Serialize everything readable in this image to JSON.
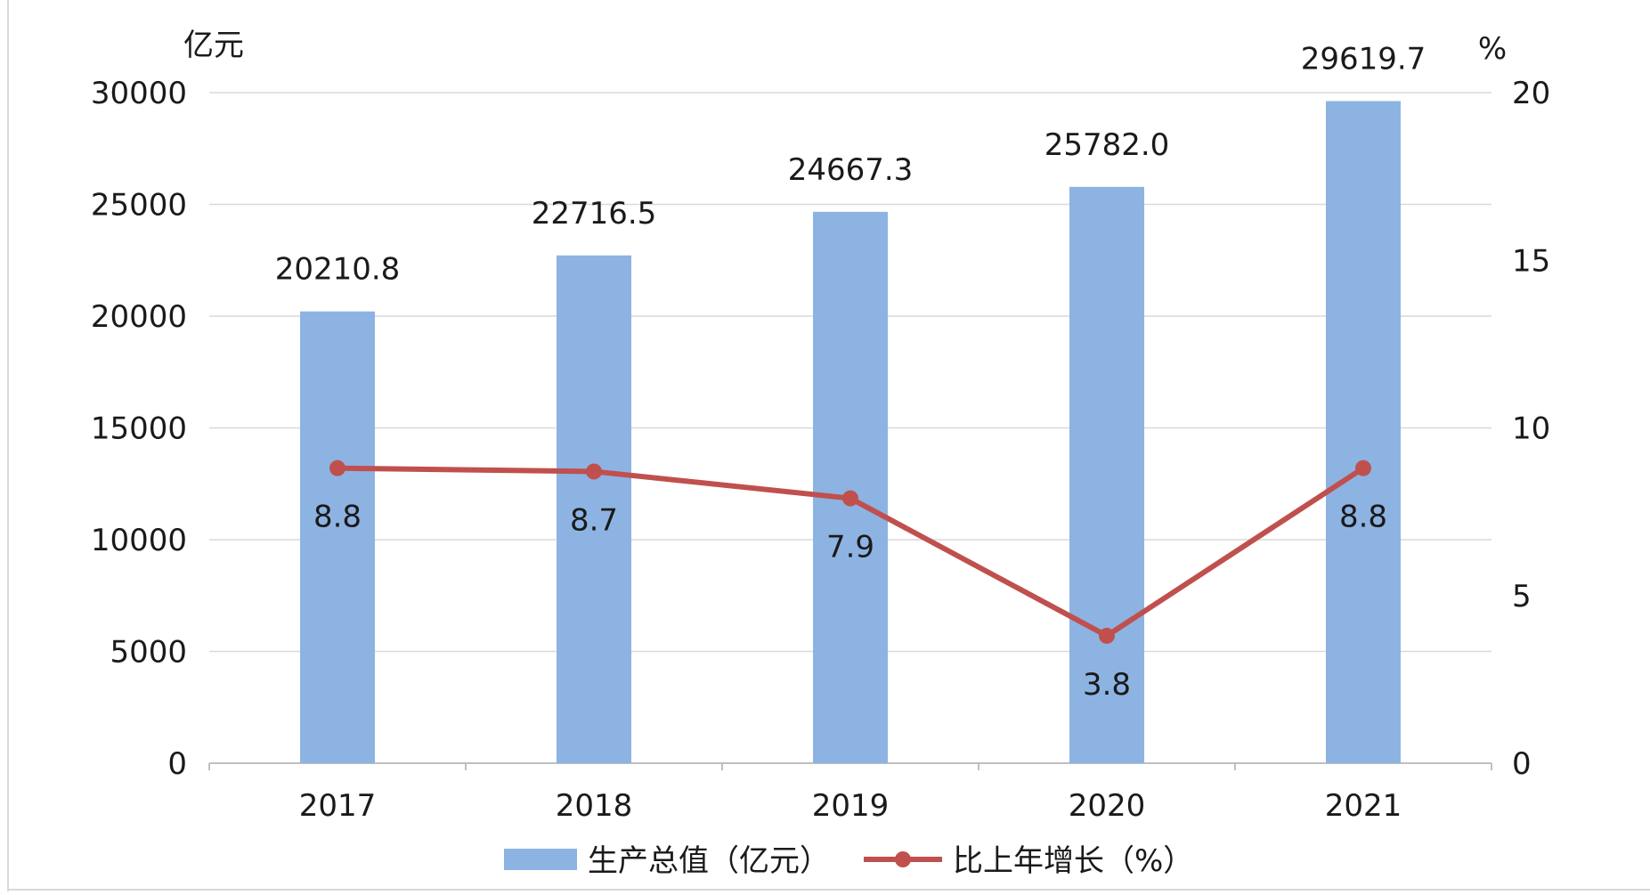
{
  "chart_data": {
    "type": "bar",
    "categories": [
      "2017",
      "2018",
      "2019",
      "2020",
      "2021"
    ],
    "series": [
      {
        "name": "生产总值（亿元）",
        "type": "bar",
        "axis": "left",
        "values": [
          20210.8,
          22716.5,
          24667.3,
          25782.0,
          29619.7
        ],
        "labels": [
          "20210.8",
          "22716.5",
          "24667.3",
          "25782.0",
          "29619.7"
        ],
        "color": "#8db3e2"
      },
      {
        "name": "比上年增长（%）",
        "type": "line",
        "axis": "right",
        "values": [
          8.8,
          8.7,
          7.9,
          3.8,
          8.8
        ],
        "labels": [
          "8.8",
          "8.7",
          "7.9",
          "3.8",
          "8.8"
        ],
        "color": "#c0504d"
      }
    ],
    "y_left": {
      "unit": "亿元",
      "ylim": [
        0,
        30000
      ],
      "ticks": [
        "0",
        "5000",
        "10000",
        "15000",
        "20000",
        "25000",
        "30000"
      ]
    },
    "y_right": {
      "unit": "%",
      "ylim": [
        0,
        20
      ],
      "ticks": [
        "0",
        "5",
        "10",
        "15",
        "20"
      ]
    },
    "grid": true,
    "legend_position": "bottom"
  }
}
